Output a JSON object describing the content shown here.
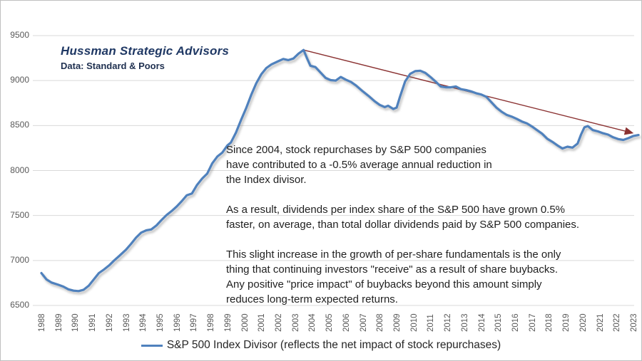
{
  "branding": {
    "title": "Hussman Strategic Advisors",
    "source": "Data: Standard & Poors"
  },
  "annotation": {
    "p1": "Since 2004, stock repurchases by S&P 500 companies\nhave contributed to a -0.5% average annual reduction in\nthe Index divisor.",
    "p2": "As a result, dividends per index share of the S&P 500 have grown 0.5%\nfaster, on average, than total dollar dividends paid by S&P 500 companies.",
    "p3": "This slight increase in the growth of per-share fundamentals is the only\nthing that continuing investors \"receive\" as a result of share buybacks.\nAny positive \"price impact\" of buybacks beyond this amount simply\nreduces long-term expected returns."
  },
  "legend": {
    "label": "S&P 500 Index Divisor (reflects the net impact of stock repurchases)"
  },
  "colors": {
    "series_blue": "#4f81bd",
    "trend_red": "#8b3232",
    "grid_gray": "#d9d9d9",
    "tick_gray": "#595959",
    "brand_blue": "#1f3864"
  },
  "chart_data": {
    "type": "line",
    "title": "S&P 500 Index Divisor (reflects the net impact of stock repurchases)",
    "xlabel": "",
    "ylabel": "",
    "ylim": [
      6500,
      9500
    ],
    "grid": "horizontal",
    "legend_position": "bottom",
    "y_ticks": [
      9500,
      9000,
      8500,
      8000,
      7500,
      7000,
      6500
    ],
    "x_ticks": [
      "1988",
      "1989",
      "1990",
      "1991",
      "1992",
      "1993",
      "1994",
      "1995",
      "1996",
      "1997",
      "1998",
      "1999",
      "2000",
      "2001",
      "2002",
      "2003",
      "2004",
      "2005",
      "2006",
      "2007",
      "2008",
      "2009",
      "2010",
      "2011",
      "2012",
      "2013",
      "2014",
      "2015",
      "2016",
      "2017",
      "2018",
      "2019",
      "2020",
      "2021",
      "2022",
      "2023"
    ],
    "series": [
      {
        "name": "S&P 500 Index Divisor",
        "color": "#4f81bd",
        "points": [
          [
            1988.0,
            6860
          ],
          [
            1988.3,
            6790
          ],
          [
            1988.6,
            6755
          ],
          [
            1989.0,
            6730
          ],
          [
            1989.3,
            6710
          ],
          [
            1989.6,
            6680
          ],
          [
            1989.9,
            6665
          ],
          [
            1990.2,
            6660
          ],
          [
            1990.5,
            6675
          ],
          [
            1990.8,
            6720
          ],
          [
            1991.1,
            6790
          ],
          [
            1991.4,
            6860
          ],
          [
            1991.7,
            6900
          ],
          [
            1992.0,
            6945
          ],
          [
            1992.3,
            7000
          ],
          [
            1992.6,
            7050
          ],
          [
            1993.0,
            7120
          ],
          [
            1993.3,
            7185
          ],
          [
            1993.6,
            7255
          ],
          [
            1993.9,
            7310
          ],
          [
            1994.2,
            7335
          ],
          [
            1994.5,
            7345
          ],
          [
            1994.8,
            7390
          ],
          [
            1995.1,
            7450
          ],
          [
            1995.4,
            7505
          ],
          [
            1995.7,
            7550
          ],
          [
            1996.0,
            7600
          ],
          [
            1996.3,
            7660
          ],
          [
            1996.6,
            7725
          ],
          [
            1996.9,
            7745
          ],
          [
            1997.2,
            7840
          ],
          [
            1997.5,
            7910
          ],
          [
            1997.8,
            7965
          ],
          [
            1998.1,
            8080
          ],
          [
            1998.4,
            8155
          ],
          [
            1998.7,
            8200
          ],
          [
            1999.0,
            8280
          ],
          [
            1999.2,
            8310
          ],
          [
            1999.5,
            8420
          ],
          [
            1999.8,
            8560
          ],
          [
            2000.1,
            8690
          ],
          [
            2000.4,
            8840
          ],
          [
            2000.7,
            8970
          ],
          [
            2001.0,
            9070
          ],
          [
            2001.3,
            9140
          ],
          [
            2001.6,
            9180
          ],
          [
            2002.0,
            9215
          ],
          [
            2002.3,
            9240
          ],
          [
            2002.6,
            9228
          ],
          [
            2002.9,
            9245
          ],
          [
            2003.2,
            9300
          ],
          [
            2003.5,
            9340
          ],
          [
            2003.7,
            9250
          ],
          [
            2003.9,
            9165
          ],
          [
            2004.2,
            9150
          ],
          [
            2004.5,
            9090
          ],
          [
            2004.8,
            9030
          ],
          [
            2005.1,
            9005
          ],
          [
            2005.4,
            9000
          ],
          [
            2005.7,
            9040
          ],
          [
            2006.0,
            9010
          ],
          [
            2006.3,
            8985
          ],
          [
            2006.6,
            8945
          ],
          [
            2007.0,
            8880
          ],
          [
            2007.4,
            8820
          ],
          [
            2007.7,
            8770
          ],
          [
            2008.0,
            8730
          ],
          [
            2008.3,
            8705
          ],
          [
            2008.5,
            8720
          ],
          [
            2008.8,
            8685
          ],
          [
            2009.0,
            8700
          ],
          [
            2009.2,
            8820
          ],
          [
            2009.5,
            8990
          ],
          [
            2009.8,
            9075
          ],
          [
            2010.1,
            9105
          ],
          [
            2010.4,
            9110
          ],
          [
            2010.7,
            9085
          ],
          [
            2011.0,
            9040
          ],
          [
            2011.3,
            8990
          ],
          [
            2011.6,
            8935
          ],
          [
            2011.9,
            8925
          ],
          [
            2012.2,
            8925
          ],
          [
            2012.5,
            8935
          ],
          [
            2012.8,
            8905
          ],
          [
            2013.1,
            8895
          ],
          [
            2013.4,
            8880
          ],
          [
            2013.7,
            8860
          ],
          [
            2014.0,
            8845
          ],
          [
            2014.3,
            8820
          ],
          [
            2014.6,
            8760
          ],
          [
            2014.9,
            8700
          ],
          [
            2015.2,
            8655
          ],
          [
            2015.5,
            8620
          ],
          [
            2015.8,
            8600
          ],
          [
            2016.1,
            8575
          ],
          [
            2016.4,
            8545
          ],
          [
            2016.7,
            8525
          ],
          [
            2017.0,
            8490
          ],
          [
            2017.3,
            8450
          ],
          [
            2017.6,
            8410
          ],
          [
            2017.9,
            8355
          ],
          [
            2018.2,
            8320
          ],
          [
            2018.5,
            8280
          ],
          [
            2018.8,
            8245
          ],
          [
            2019.1,
            8265
          ],
          [
            2019.4,
            8255
          ],
          [
            2019.7,
            8300
          ],
          [
            2019.9,
            8400
          ],
          [
            2020.1,
            8480
          ],
          [
            2020.3,
            8495
          ],
          [
            2020.6,
            8450
          ],
          [
            2020.9,
            8435
          ],
          [
            2021.2,
            8415
          ],
          [
            2021.5,
            8400
          ],
          [
            2021.8,
            8370
          ],
          [
            2022.1,
            8350
          ],
          [
            2022.4,
            8340
          ],
          [
            2022.7,
            8360
          ],
          [
            2023.0,
            8385
          ],
          [
            2023.3,
            8395
          ]
        ]
      }
    ],
    "trendline": {
      "name": "decline since 2004 peak",
      "color": "#8b3232",
      "from": [
        2003.5,
        9340
      ],
      "to": [
        2022.9,
        8420
      ],
      "arrow_at_end": true
    }
  }
}
